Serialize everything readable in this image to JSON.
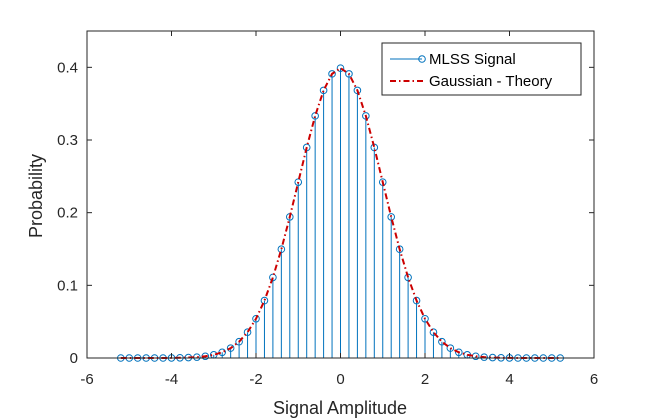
{
  "chart_data": {
    "type": "line",
    "title": "",
    "xlabel": "Signal Amplitude",
    "ylabel": "Probability",
    "xlim": [
      -6,
      6
    ],
    "ylim": [
      0,
      0.45
    ],
    "x_ticks": [
      -6,
      -4,
      -2,
      0,
      2,
      4,
      6
    ],
    "x_tick_labels": [
      "-6",
      "-4",
      "-2",
      "0",
      "2",
      "4",
      "6"
    ],
    "y_ticks": [
      0,
      0.1,
      0.2,
      0.3,
      0.4
    ],
    "y_tick_labels": [
      "0",
      "0.1",
      "0.2",
      "0.3",
      "0.4"
    ],
    "grid": false,
    "legend_position": "top-right",
    "series": [
      {
        "name": "MLSS Signal",
        "style": "stem",
        "color": "#0072BD",
        "x": [
          -5.2,
          -5.0,
          -4.8,
          -4.6,
          -4.4,
          -4.2,
          -4.0,
          -3.8,
          -3.6,
          -3.4,
          -3.2,
          -3.0,
          -2.8,
          -2.6,
          -2.4,
          -2.2,
          -2.0,
          -1.8,
          -1.6,
          -1.4,
          -1.2,
          -1.0,
          -0.8,
          -0.6,
          -0.4,
          -0.2,
          0.0,
          0.2,
          0.4,
          0.6,
          0.8,
          1.0,
          1.2,
          1.4,
          1.6,
          1.8,
          2.0,
          2.2,
          2.4,
          2.6,
          2.8,
          3.0,
          3.2,
          3.4,
          3.6,
          3.8,
          4.0,
          4.2,
          4.4,
          4.6,
          4.8,
          5.0,
          5.2
        ],
        "y": [
          0.0,
          0.0,
          0.0,
          0.0,
          0.0,
          0.0,
          0.0001,
          0.0003,
          0.0006,
          0.0012,
          0.0024,
          0.0044,
          0.0079,
          0.0136,
          0.0224,
          0.0355,
          0.054,
          0.079,
          0.1109,
          0.1497,
          0.1942,
          0.242,
          0.2897,
          0.3332,
          0.3683,
          0.391,
          0.3989,
          0.391,
          0.3683,
          0.3332,
          0.2897,
          0.242,
          0.1942,
          0.1497,
          0.1109,
          0.079,
          0.054,
          0.0355,
          0.0224,
          0.0136,
          0.0079,
          0.0044,
          0.0024,
          0.0012,
          0.0006,
          0.0003,
          0.0001,
          0.0,
          0.0,
          0.0,
          0.0,
          0.0,
          0.0
        ]
      },
      {
        "name": "Gaussian - Theory",
        "style": "dash-dot",
        "color": "#CC0000",
        "x": [
          -5.2,
          -5.0,
          -4.8,
          -4.6,
          -4.4,
          -4.2,
          -4.0,
          -3.8,
          -3.6,
          -3.4,
          -3.2,
          -3.0,
          -2.8,
          -2.6,
          -2.4,
          -2.2,
          -2.0,
          -1.8,
          -1.6,
          -1.4,
          -1.2,
          -1.0,
          -0.8,
          -0.6,
          -0.4,
          -0.2,
          0.0,
          0.2,
          0.4,
          0.6,
          0.8,
          1.0,
          1.2,
          1.4,
          1.6,
          1.8,
          2.0,
          2.2,
          2.4,
          2.6,
          2.8,
          3.0,
          3.2,
          3.4,
          3.6,
          3.8,
          4.0,
          4.2,
          4.4,
          4.6,
          4.8,
          5.0,
          5.2
        ],
        "y": [
          0.0,
          0.0,
          0.0,
          0.0,
          0.0,
          0.0,
          0.0001,
          0.0003,
          0.0006,
          0.0012,
          0.0024,
          0.0044,
          0.0079,
          0.0136,
          0.0224,
          0.0355,
          0.054,
          0.079,
          0.1109,
          0.1497,
          0.1942,
          0.242,
          0.2897,
          0.3332,
          0.3683,
          0.391,
          0.3989,
          0.391,
          0.3683,
          0.3332,
          0.2897,
          0.242,
          0.1942,
          0.1497,
          0.1109,
          0.079,
          0.054,
          0.0355,
          0.0224,
          0.0136,
          0.0079,
          0.0044,
          0.0024,
          0.0012,
          0.0006,
          0.0003,
          0.0001,
          0.0,
          0.0,
          0.0,
          0.0,
          0.0,
          0.0
        ]
      }
    ]
  }
}
